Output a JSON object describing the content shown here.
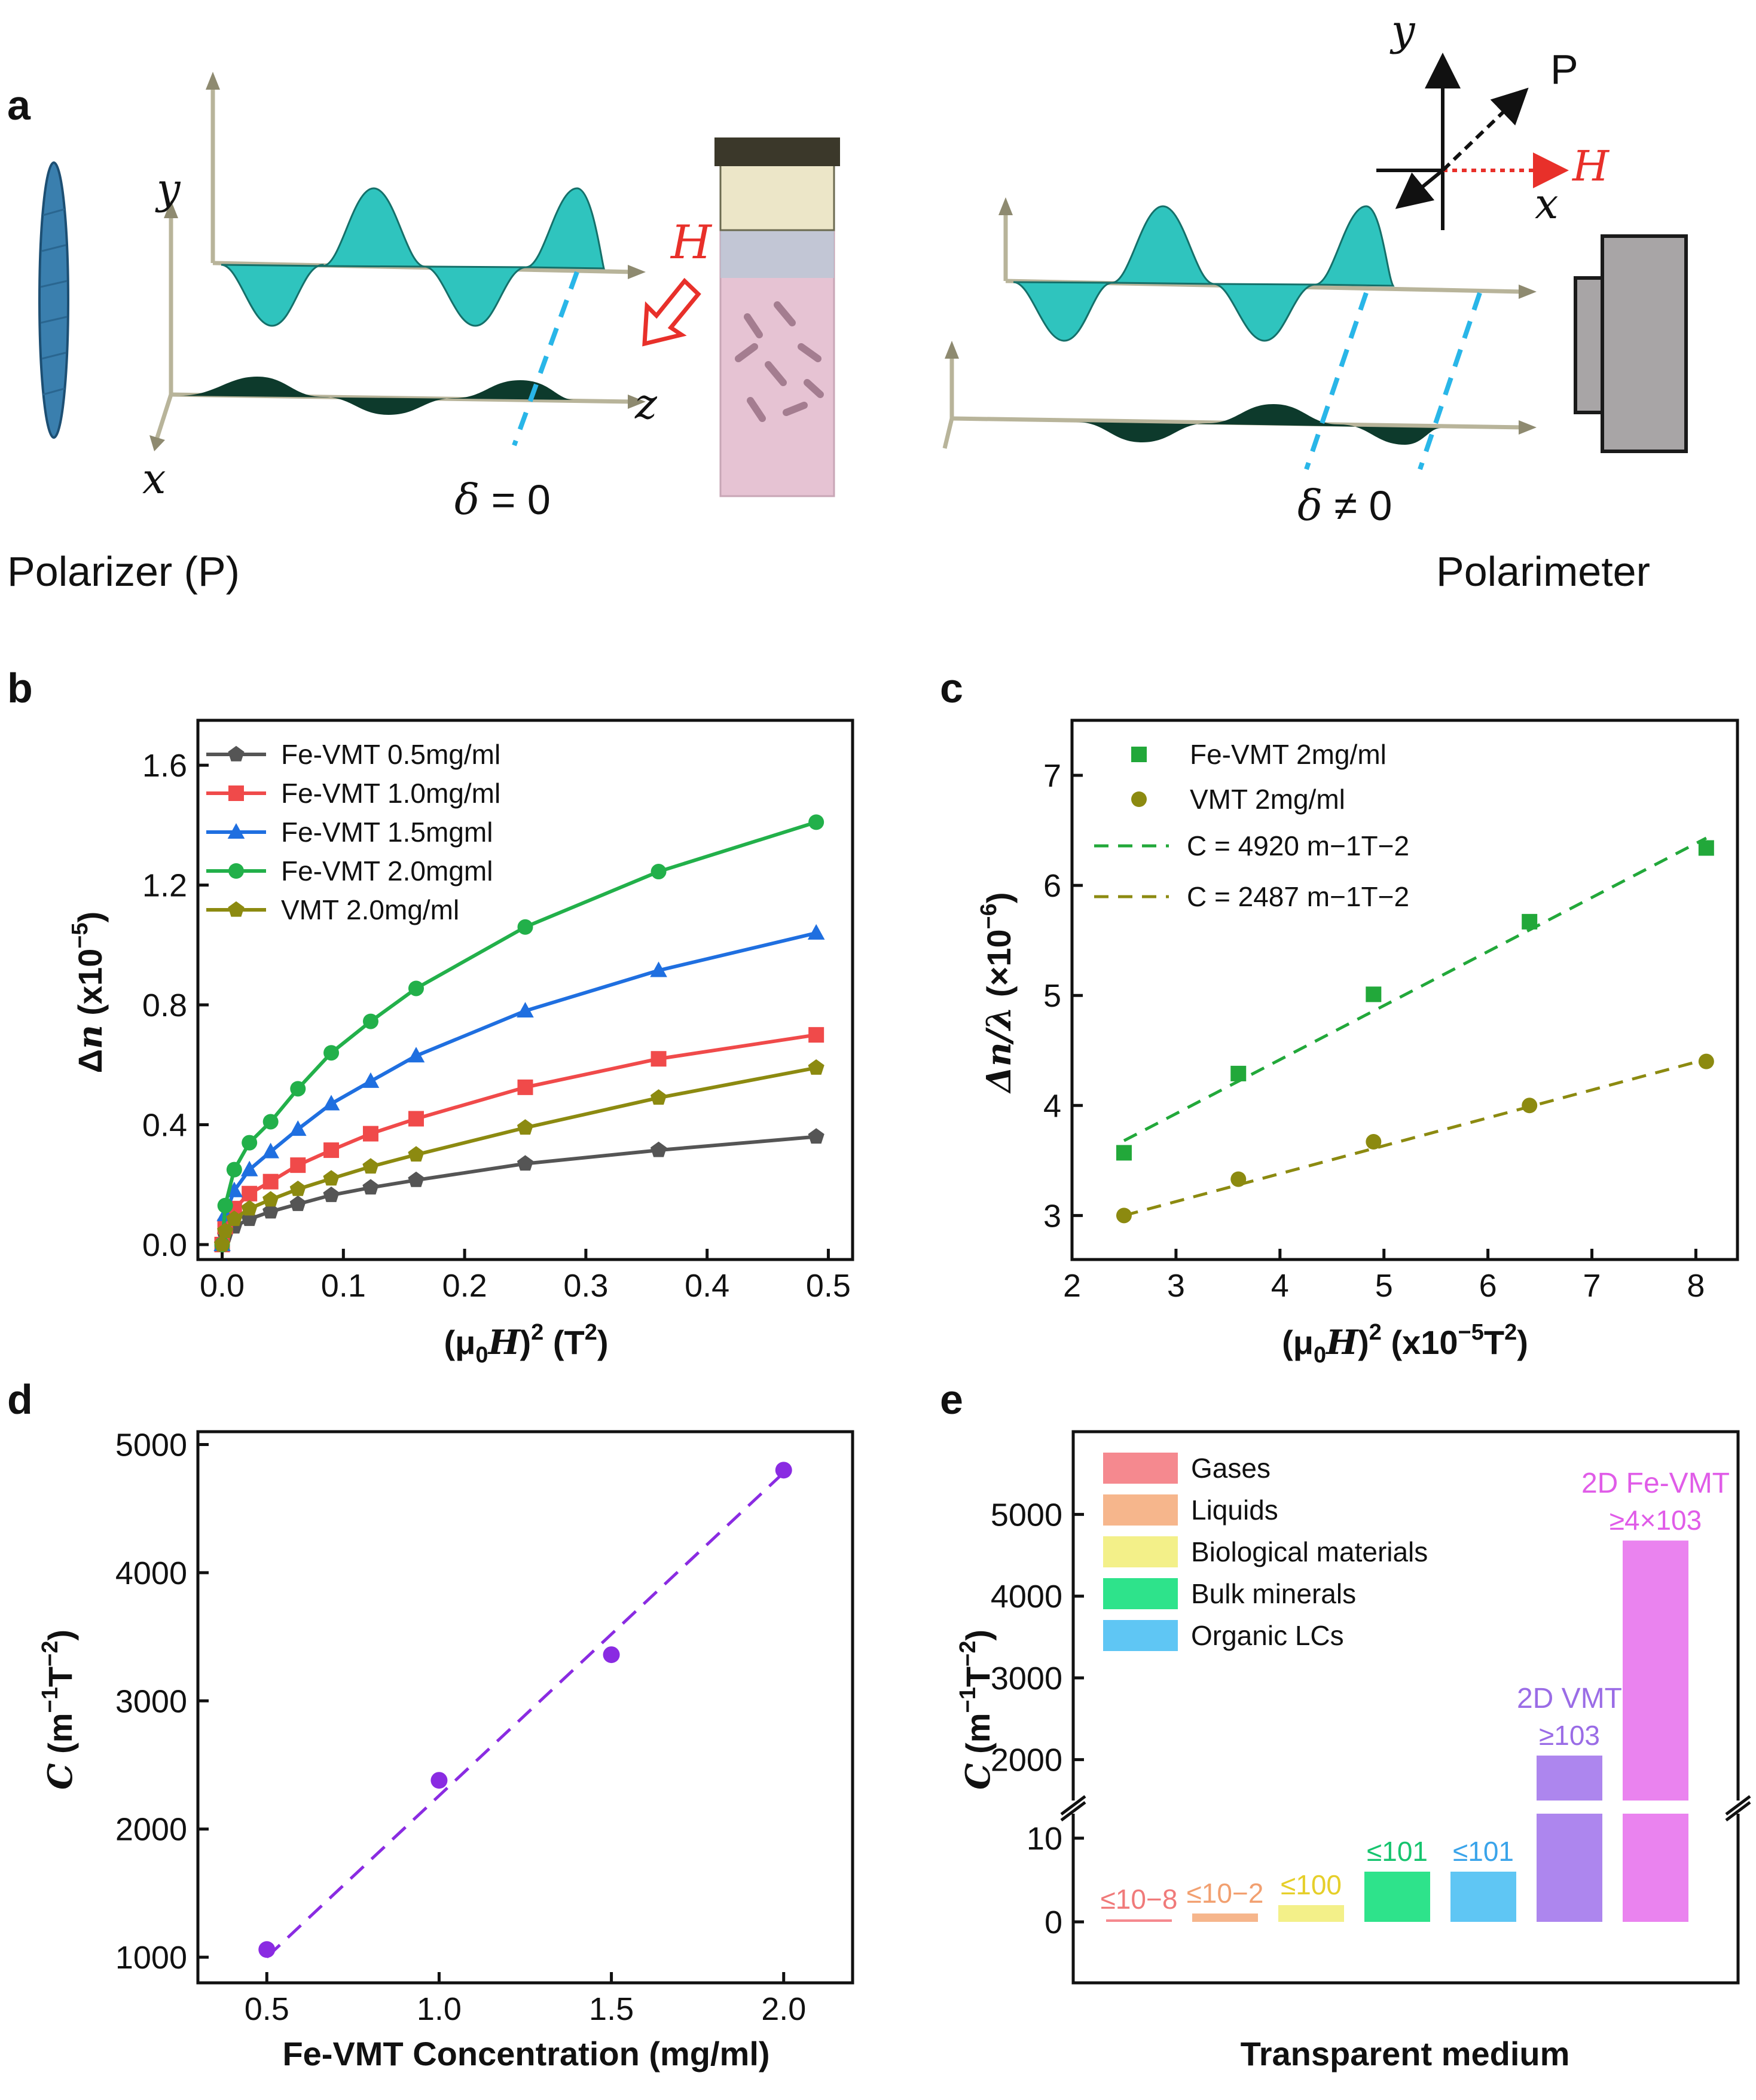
{
  "panel_labels": {
    "a": "a",
    "b": "b",
    "c": "c",
    "d": "d",
    "e": "e"
  },
  "panel_a": {
    "polarizer_label": "Polarizer (P)",
    "polarimeter_label": "Polarimeter",
    "delta_zero": "δ = 0",
    "delta_nonzero": "δ ≠ 0",
    "field_label": "H",
    "axis_x": "x",
    "axis_y": "y",
    "axis_z": "z",
    "inset_P": "P",
    "inset_H": "H",
    "inset_x": "x",
    "inset_y": "y",
    "colors": {
      "wave": "#2fc4be",
      "wave_dark": "#15706a",
      "dark_wave": "#0d3a2c",
      "field": "#e8302a",
      "dash": "#29b6e8",
      "cuvette": "#e6c3d3",
      "detector": "#a8a5a6"
    }
  },
  "chart_data": [
    {
      "id": "b",
      "type": "line",
      "xlabel": "(μ0H)2 (T2)",
      "ylabel": "Δn (x10−5)",
      "xlim": [
        -0.02,
        0.52
      ],
      "ylim": [
        -0.05,
        1.75
      ],
      "xticks": [
        "0.0",
        "0.1",
        "0.2",
        "0.3",
        "0.4",
        "0.5"
      ],
      "yticks": [
        "0.0",
        "0.4",
        "0.8",
        "1.2",
        "1.6"
      ],
      "legend_position": "top-left",
      "series": [
        {
          "name": "Fe-VMT 0.5mg/ml",
          "color": "#555555",
          "marker": "pentagon",
          "x": [
            0.0,
            0.0025,
            0.01,
            0.0225,
            0.04,
            0.0625,
            0.09,
            0.1225,
            0.16,
            0.25,
            0.36,
            0.49
          ],
          "y": [
            0.0,
            0.03,
            0.06,
            0.085,
            0.11,
            0.135,
            0.165,
            0.19,
            0.215,
            0.27,
            0.315,
            0.36
          ]
        },
        {
          "name": "Fe-VMT 1.0mg/ml",
          "color": "#f04a4a",
          "marker": "square",
          "x": [
            0.0,
            0.0025,
            0.01,
            0.0225,
            0.04,
            0.0625,
            0.09,
            0.1225,
            0.16,
            0.25,
            0.36,
            0.49
          ],
          "y": [
            0.0,
            0.06,
            0.12,
            0.17,
            0.21,
            0.265,
            0.315,
            0.37,
            0.42,
            0.525,
            0.62,
            0.7
          ]
        },
        {
          "name": "Fe-VMT 1.5mgml",
          "color": "#1f6fe0",
          "marker": "triangle",
          "x": [
            0.0,
            0.0025,
            0.01,
            0.0225,
            0.04,
            0.0625,
            0.09,
            0.1225,
            0.16,
            0.25,
            0.36,
            0.49
          ],
          "y": [
            0.0,
            0.1,
            0.18,
            0.25,
            0.31,
            0.385,
            0.47,
            0.545,
            0.63,
            0.78,
            0.915,
            1.04
          ]
        },
        {
          "name": "Fe-VMT 2.0mgml",
          "color": "#22b04a",
          "marker": "circle",
          "x": [
            0.0,
            0.0025,
            0.01,
            0.0225,
            0.04,
            0.0625,
            0.09,
            0.1225,
            0.16,
            0.25,
            0.36,
            0.49
          ],
          "y": [
            0.0,
            0.13,
            0.25,
            0.34,
            0.41,
            0.52,
            0.64,
            0.745,
            0.855,
            1.06,
            1.245,
            1.41
          ]
        },
        {
          "name": "VMT 2.0mg/ml",
          "color": "#8c8a10",
          "marker": "pentagon",
          "x": [
            0.0,
            0.0025,
            0.01,
            0.0225,
            0.04,
            0.0625,
            0.09,
            0.1225,
            0.16,
            0.25,
            0.36,
            0.49
          ],
          "y": [
            0.0,
            0.045,
            0.085,
            0.12,
            0.15,
            0.185,
            0.22,
            0.26,
            0.3,
            0.39,
            0.49,
            0.59
          ]
        }
      ]
    },
    {
      "id": "c",
      "type": "scatter",
      "xlabel": "(μ0H)2 (x10−5T2)",
      "ylabel": "Δn/λ (×10−6)",
      "xlim": [
        2,
        8.4
      ],
      "ylim": [
        2.6,
        7.5
      ],
      "xticks": [
        "2",
        "3",
        "4",
        "5",
        "6",
        "7",
        "8"
      ],
      "yticks": [
        "3",
        "4",
        "5",
        "6",
        "7"
      ],
      "legend_position": "top-left",
      "series": [
        {
          "name": "Fe-VMT 2mg/ml",
          "color": "#22a83a",
          "marker": "square",
          "x": [
            2.5,
            3.6,
            4.9,
            6.4,
            8.1
          ],
          "y": [
            3.57,
            4.29,
            5.01,
            5.67,
            6.34
          ],
          "fit_label": "C = 4920 m−1T−2",
          "fit": [
            [
              2.5,
              3.68
            ],
            [
              8.1,
              6.43
            ]
          ]
        },
        {
          "name": "VMT 2mg/ml",
          "color": "#8c8a10",
          "marker": "circle",
          "x": [
            2.5,
            3.6,
            4.9,
            6.4,
            8.1
          ],
          "y": [
            3.0,
            3.33,
            3.67,
            4.0,
            4.4
          ],
          "fit_label": "C = 2487 m−1T−2",
          "fit": [
            [
              2.5,
              3.0
            ],
            [
              8.1,
              4.42
            ]
          ]
        }
      ]
    },
    {
      "id": "d",
      "type": "scatter",
      "xlabel": "Fe-VMT Concentration (mg/ml)",
      "ylabel": "C (m−1T−2)",
      "xlim": [
        0.3,
        2.2
      ],
      "ylim": [
        800,
        5100
      ],
      "xticks": [
        "0.5",
        "1.0",
        "1.5",
        "2.0"
      ],
      "yticks": [
        "1000",
        "2000",
        "3000",
        "4000",
        "5000"
      ],
      "series": [
        {
          "name": "Fe-VMT",
          "color": "#8a2be2",
          "marker": "circle",
          "x": [
            0.5,
            1.0,
            1.5,
            2.0
          ],
          "y": [
            1060,
            2380,
            3360,
            4800
          ],
          "fit": [
            [
              0.5,
              1000
            ],
            [
              2.0,
              4780
            ]
          ]
        }
      ]
    },
    {
      "id": "e",
      "type": "bar",
      "xlabel": "Transparent medium",
      "ylabel": "C (m−1T−2)",
      "yticks_low": [
        "0",
        "10"
      ],
      "yticks_high": [
        "2000",
        "3000",
        "4000",
        "5000"
      ],
      "axis_break": [
        20,
        1500
      ],
      "legend_position": "top-left",
      "categories": [
        "Gases",
        "Liquids",
        "Biological materials",
        "Bulk minerals",
        "Organic LCs",
        "2D VMT",
        "2D Fe-VMT"
      ],
      "values": [
        0.3,
        1,
        2,
        6,
        6,
        2050,
        4680
      ],
      "value_labels": [
        "≤10−8",
        "≤10−2",
        "≤100",
        "≤101",
        "≤101",
        "≥103",
        "≥4×103"
      ],
      "extra_labels": [
        "",
        "",
        "",
        "",
        "",
        "2D VMT",
        "2D Fe-VMT"
      ],
      "colors": [
        "#f5898f",
        "#f6b68c",
        "#f3f089",
        "#2ee38b",
        "#5fc6f4",
        "#ad86ee",
        "#ea83ef"
      ],
      "label_colors": [
        "#f07a7a",
        "#f2a070",
        "#e6cf2a",
        "#16c46e",
        "#3aa4ea",
        "#9a6ce6",
        "#e05ce8"
      ]
    }
  ]
}
